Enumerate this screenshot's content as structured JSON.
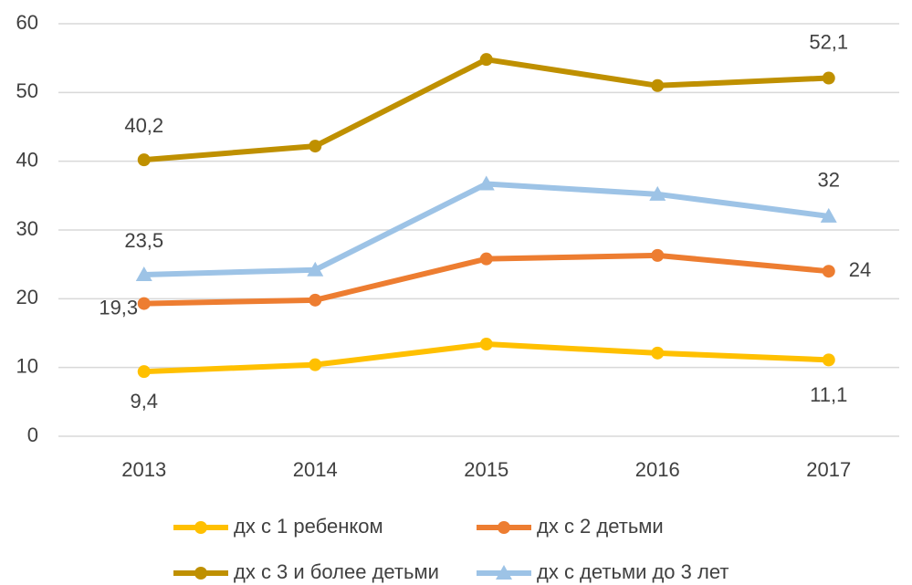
{
  "chart_data": {
    "type": "line",
    "categories": [
      "2013",
      "2014",
      "2015",
      "2016",
      "2017"
    ],
    "series": [
      {
        "name": "дх с 1 ребенком",
        "color": "#ffc000",
        "marker": "circle",
        "values": [
          9.4,
          10.4,
          13.4,
          12.1,
          11.1
        ],
        "value_labels": [
          "9,4",
          null,
          null,
          null,
          "11,1"
        ]
      },
      {
        "name": "дх с 2 детьми",
        "color": "#ed7d31",
        "marker": "circle",
        "values": [
          19.3,
          19.8,
          25.8,
          26.3,
          24
        ],
        "value_labels": [
          "19,3",
          null,
          null,
          null,
          "24"
        ]
      },
      {
        "name": "дх с 3 и более детьми",
        "color": "#bf9000",
        "marker": "circle",
        "values": [
          40.2,
          42.2,
          54.8,
          51.0,
          52.1
        ],
        "value_labels": [
          "40,2",
          null,
          null,
          null,
          "52,1"
        ]
      },
      {
        "name": "дх с детьми до 3 лет",
        "color": "#9dc3e6",
        "marker": "triangle",
        "values": [
          23.5,
          24.2,
          36.7,
          35.2,
          32
        ],
        "value_labels": [
          "23,5",
          null,
          null,
          null,
          "32"
        ]
      }
    ],
    "ylim": [
      0,
      60
    ],
    "yticks": [
      0,
      10,
      20,
      30,
      40,
      50,
      60
    ],
    "grid": true,
    "legend": "bottom"
  }
}
